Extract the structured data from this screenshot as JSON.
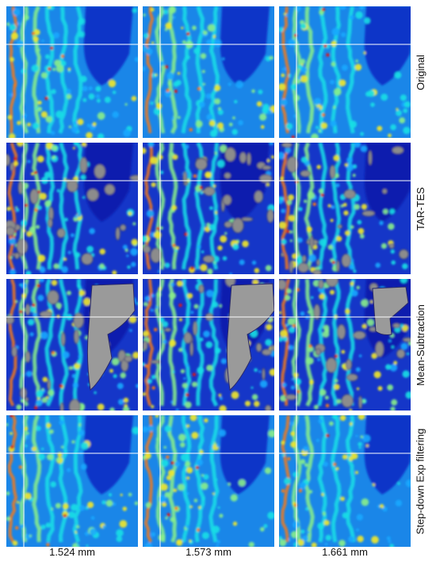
{
  "figure": {
    "columns": [
      "1.524 mm",
      "1.573 mm",
      "1.661 mm"
    ],
    "rows": [
      "Original",
      "TAR-TES",
      "Mean-Subtraction",
      "Step-down Exp filtering"
    ],
    "colormap": [
      "#0a1fae",
      "#1f4df0",
      "#16a8ff",
      "#16e0e6",
      "#8af08a",
      "#f2e82a",
      "#f57a16",
      "#d8161e"
    ],
    "masked_color": "#8c8c8c",
    "outline_color": "#2b2b6b",
    "crosshair_color": "#ffffff"
  }
}
